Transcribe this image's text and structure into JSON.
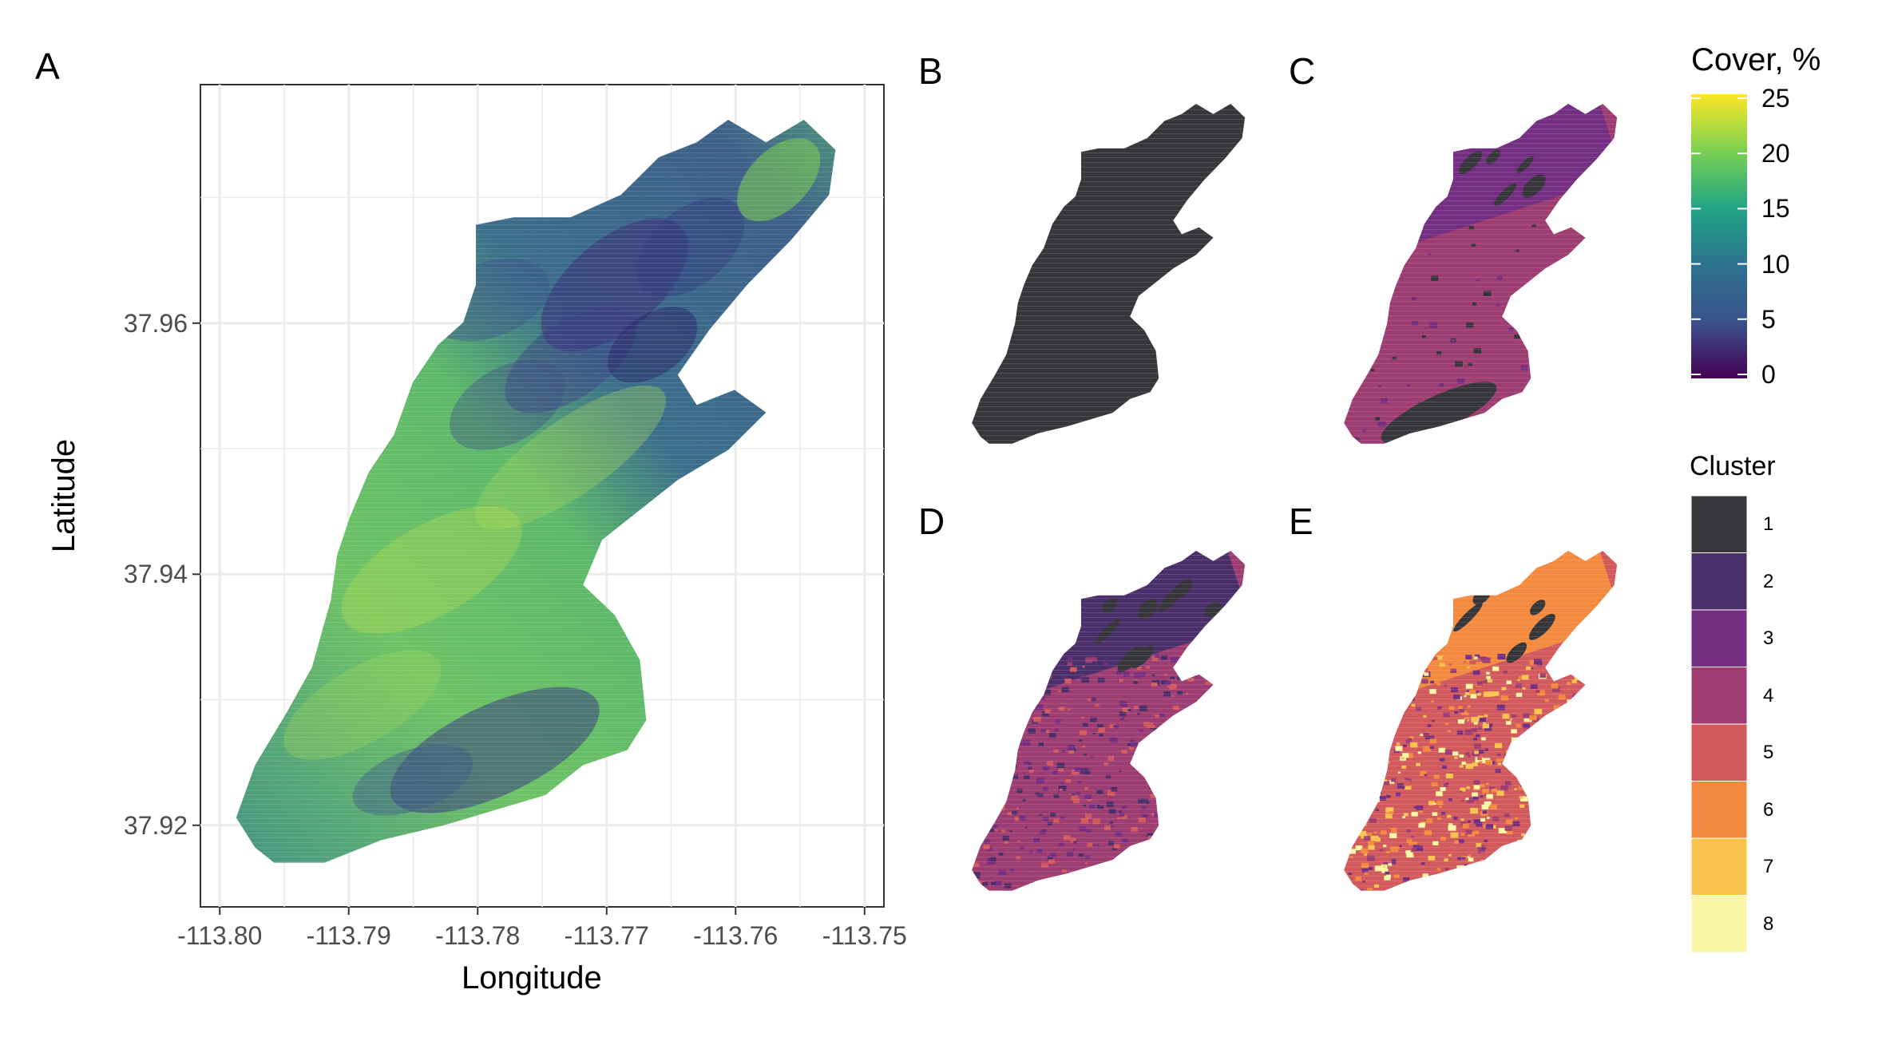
{
  "panels": {
    "a": {
      "letter": "A"
    },
    "b": {
      "letter": "B"
    },
    "c": {
      "letter": "C"
    },
    "d": {
      "letter": "D"
    },
    "e": {
      "letter": "E"
    }
  },
  "axes": {
    "x_title": "Longitude",
    "y_title": "Latitude",
    "x_ticks": [
      "-113.80",
      "-113.79",
      "-113.78",
      "-113.77",
      "-113.76",
      "-113.75"
    ],
    "y_ticks": [
      "37.96",
      "37.94",
      "37.92"
    ]
  },
  "cover_legend": {
    "title": "Cover, %",
    "ticks": [
      "25",
      "20",
      "15",
      "10",
      "5",
      "0"
    ],
    "range": [
      0,
      25
    ],
    "palette": [
      "#440154",
      "#3b528b",
      "#21918c",
      "#5ec962",
      "#fde725"
    ]
  },
  "cluster_legend": {
    "title": "Cluster",
    "items": [
      {
        "label": "1",
        "color": "#36363b"
      },
      {
        "label": "2",
        "color": "#4b2f6b"
      },
      {
        "label": "3",
        "color": "#742e82"
      },
      {
        "label": "4",
        "color": "#9d3d72"
      },
      {
        "label": "5",
        "color": "#d25a5d"
      },
      {
        "label": "6",
        "color": "#f38a3f"
      },
      {
        "label": "7",
        "color": "#f9c44e"
      },
      {
        "label": "8",
        "color": "#fbf7a5"
      }
    ]
  },
  "map_data": {
    "x_range": [
      -113.8015,
      -113.7485
    ],
    "y_range": [
      37.9135,
      37.979
    ],
    "gridlines": true,
    "fill": "Cover, %",
    "panels": [
      {
        "id": "A",
        "fill": "cover"
      },
      {
        "id": "B",
        "fill": "cluster",
        "clusters_shown": 1
      },
      {
        "id": "C",
        "fill": "cluster",
        "clusters_shown": 3
      },
      {
        "id": "D",
        "fill": "cluster",
        "clusters_shown": 5
      },
      {
        "id": "E",
        "fill": "cluster",
        "clusters_shown": 8
      }
    ]
  }
}
